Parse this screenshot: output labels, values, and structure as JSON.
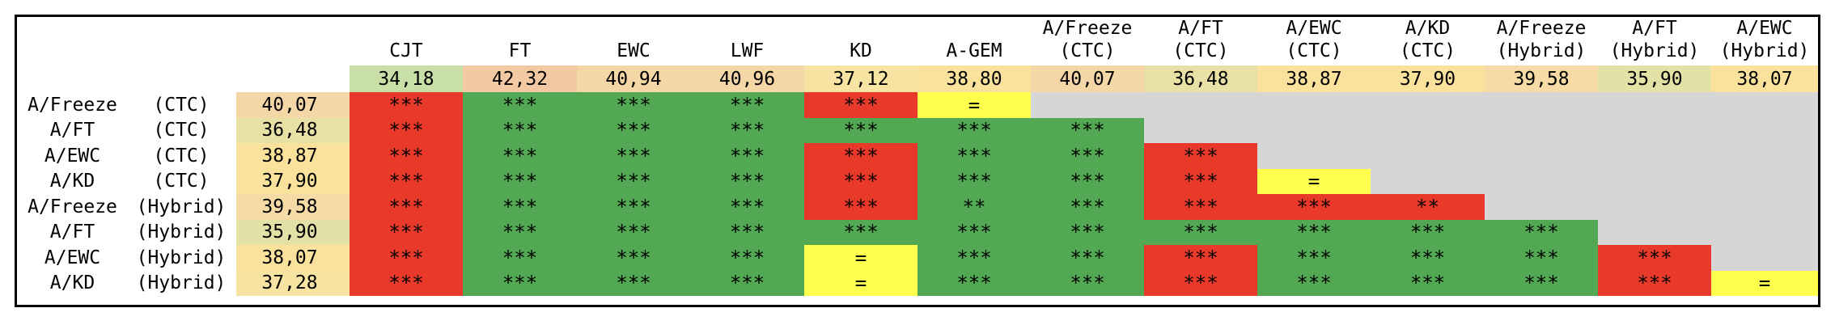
{
  "columns": [
    {
      "name": "CJT",
      "sub": ""
    },
    {
      "name": "FT",
      "sub": ""
    },
    {
      "name": "EWC",
      "sub": ""
    },
    {
      "name": "LWF",
      "sub": ""
    },
    {
      "name": "KD",
      "sub": ""
    },
    {
      "name": "A-GEM",
      "sub": ""
    },
    {
      "name": "A/Freeze",
      "sub": "(CTC)"
    },
    {
      "name": "A/FT",
      "sub": "(CTC)"
    },
    {
      "name": "A/EWC",
      "sub": "(CTC)"
    },
    {
      "name": "A/KD",
      "sub": "(CTC)"
    },
    {
      "name": "A/Freeze",
      "sub": "(Hybrid)"
    },
    {
      "name": "A/FT",
      "sub": "(Hybrid)"
    },
    {
      "name": "A/EWC",
      "sub": "(Hybrid)"
    }
  ],
  "column_values": [
    "34,18",
    "42,32",
    "40,94",
    "40,96",
    "37,12",
    "38,80",
    "40,07",
    "36,48",
    "38,87",
    "37,90",
    "39,58",
    "35,90",
    "38,07"
  ],
  "column_value_colors": [
    "#c9dfa8",
    "#f3c9a4",
    "#f5d6a7",
    "#f5d6a7",
    "#f8e4a2",
    "#fbe29c",
    "#f5d6a7",
    "#e8e0a4",
    "#fbe29c",
    "#fbe29c",
    "#f6dba6",
    "#e4e1a6",
    "#fbe29c"
  ],
  "rows": [
    {
      "name": "A/Freeze",
      "tag": "(CTC)",
      "value": "40,07",
      "value_color": "#f5d6a7",
      "cells": [
        {
          "t": "***",
          "c": "red"
        },
        {
          "t": "***",
          "c": "green"
        },
        {
          "t": "***",
          "c": "green"
        },
        {
          "t": "***",
          "c": "green"
        },
        {
          "t": "***",
          "c": "red"
        },
        {
          "t": "=",
          "c": "yellow"
        },
        {
          "t": "",
          "c": "gray"
        },
        {
          "t": "",
          "c": "gray"
        },
        {
          "t": "",
          "c": "gray"
        },
        {
          "t": "",
          "c": "gray"
        },
        {
          "t": "",
          "c": "gray"
        },
        {
          "t": "",
          "c": "gray"
        },
        {
          "t": "",
          "c": "gray"
        }
      ]
    },
    {
      "name": "A/FT",
      "tag": "(CTC)",
      "value": "36,48",
      "value_color": "#e8e0a4",
      "cells": [
        {
          "t": "***",
          "c": "red"
        },
        {
          "t": "***",
          "c": "green"
        },
        {
          "t": "***",
          "c": "green"
        },
        {
          "t": "***",
          "c": "green"
        },
        {
          "t": "***",
          "c": "green"
        },
        {
          "t": "***",
          "c": "green"
        },
        {
          "t": "***",
          "c": "green"
        },
        {
          "t": "",
          "c": "gray"
        },
        {
          "t": "",
          "c": "gray"
        },
        {
          "t": "",
          "c": "gray"
        },
        {
          "t": "",
          "c": "gray"
        },
        {
          "t": "",
          "c": "gray"
        },
        {
          "t": "",
          "c": "gray"
        }
      ]
    },
    {
      "name": "A/EWC",
      "tag": "(CTC)",
      "value": "38,87",
      "value_color": "#fbe29c",
      "cells": [
        {
          "t": "***",
          "c": "red"
        },
        {
          "t": "***",
          "c": "green"
        },
        {
          "t": "***",
          "c": "green"
        },
        {
          "t": "***",
          "c": "green"
        },
        {
          "t": "***",
          "c": "red"
        },
        {
          "t": "***",
          "c": "green"
        },
        {
          "t": "***",
          "c": "green"
        },
        {
          "t": "***",
          "c": "red"
        },
        {
          "t": "",
          "c": "gray"
        },
        {
          "t": "",
          "c": "gray"
        },
        {
          "t": "",
          "c": "gray"
        },
        {
          "t": "",
          "c": "gray"
        },
        {
          "t": "",
          "c": "gray"
        }
      ]
    },
    {
      "name": "A/KD",
      "tag": "(CTC)",
      "value": "37,90",
      "value_color": "#fbe29c",
      "cells": [
        {
          "t": "***",
          "c": "red"
        },
        {
          "t": "***",
          "c": "green"
        },
        {
          "t": "***",
          "c": "green"
        },
        {
          "t": "***",
          "c": "green"
        },
        {
          "t": "***",
          "c": "red"
        },
        {
          "t": "***",
          "c": "green"
        },
        {
          "t": "***",
          "c": "green"
        },
        {
          "t": "***",
          "c": "red"
        },
        {
          "t": "=",
          "c": "yellow"
        },
        {
          "t": "",
          "c": "gray"
        },
        {
          "t": "",
          "c": "gray"
        },
        {
          "t": "",
          "c": "gray"
        },
        {
          "t": "",
          "c": "gray"
        }
      ]
    },
    {
      "name": "A/Freeze",
      "tag": "(Hybrid)",
      "value": "39,58",
      "value_color": "#f6dba6",
      "cells": [
        {
          "t": "***",
          "c": "red"
        },
        {
          "t": "***",
          "c": "green"
        },
        {
          "t": "***",
          "c": "green"
        },
        {
          "t": "***",
          "c": "green"
        },
        {
          "t": "***",
          "c": "red"
        },
        {
          "t": "**",
          "c": "green"
        },
        {
          "t": "***",
          "c": "green"
        },
        {
          "t": "***",
          "c": "red"
        },
        {
          "t": "***",
          "c": "red"
        },
        {
          "t": "**",
          "c": "red"
        },
        {
          "t": "",
          "c": "gray"
        },
        {
          "t": "",
          "c": "gray"
        },
        {
          "t": "",
          "c": "gray"
        }
      ]
    },
    {
      "name": "A/FT",
      "tag": "(Hybrid)",
      "value": "35,90",
      "value_color": "#e4e1a6",
      "cells": [
        {
          "t": "***",
          "c": "red"
        },
        {
          "t": "***",
          "c": "green"
        },
        {
          "t": "***",
          "c": "green"
        },
        {
          "t": "***",
          "c": "green"
        },
        {
          "t": "***",
          "c": "green"
        },
        {
          "t": "***",
          "c": "green"
        },
        {
          "t": "***",
          "c": "green"
        },
        {
          "t": "***",
          "c": "green"
        },
        {
          "t": "***",
          "c": "green"
        },
        {
          "t": "***",
          "c": "green"
        },
        {
          "t": "***",
          "c": "green"
        },
        {
          "t": "",
          "c": "gray"
        },
        {
          "t": "",
          "c": "gray"
        }
      ]
    },
    {
      "name": "A/EWC",
      "tag": "(Hybrid)",
      "value": "38,07",
      "value_color": "#fbe29c",
      "cells": [
        {
          "t": "***",
          "c": "red"
        },
        {
          "t": "***",
          "c": "green"
        },
        {
          "t": "***",
          "c": "green"
        },
        {
          "t": "***",
          "c": "green"
        },
        {
          "t": "=",
          "c": "yellow"
        },
        {
          "t": "***",
          "c": "green"
        },
        {
          "t": "***",
          "c": "green"
        },
        {
          "t": "***",
          "c": "red"
        },
        {
          "t": "***",
          "c": "green"
        },
        {
          "t": "***",
          "c": "green"
        },
        {
          "t": "***",
          "c": "green"
        },
        {
          "t": "***",
          "c": "red"
        },
        {
          "t": "",
          "c": "gray"
        }
      ]
    },
    {
      "name": "A/KD",
      "tag": "(Hybrid)",
      "value": "37,28",
      "value_color": "#f8e4a2",
      "cells": [
        {
          "t": "***",
          "c": "red"
        },
        {
          "t": "***",
          "c": "green"
        },
        {
          "t": "***",
          "c": "green"
        },
        {
          "t": "***",
          "c": "green"
        },
        {
          "t": "=",
          "c": "yellow"
        },
        {
          "t": "***",
          "c": "green"
        },
        {
          "t": "***",
          "c": "green"
        },
        {
          "t": "***",
          "c": "red"
        },
        {
          "t": "***",
          "c": "green"
        },
        {
          "t": "***",
          "c": "green"
        },
        {
          "t": "***",
          "c": "green"
        },
        {
          "t": "***",
          "c": "red"
        },
        {
          "t": "=",
          "c": "yellow"
        }
      ]
    }
  ]
}
